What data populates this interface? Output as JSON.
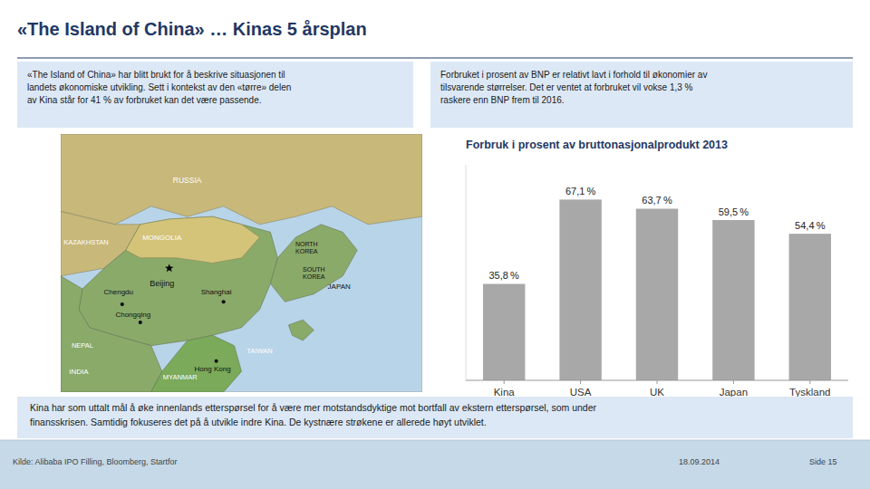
{
  "chart_data": {
    "type": "bar",
    "title": "Forbruk i prosent av bruttonasjonalprodukt 2013",
    "categories": [
      "Kina",
      "USA",
      "UK",
      "Japan",
      "Tyskland"
    ],
    "values": [
      35.8,
      67.1,
      63.7,
      59.5,
      54.4
    ],
    "value_labels": [
      "35,8 %",
      "67,1 %",
      "63,7 %",
      "59,5 %",
      "54,4 %"
    ],
    "data_labels": true,
    "color": "#a8a8a8",
    "ylim": [
      0,
      80
    ],
    "tick_labels": "x",
    "grid": false
  },
  "page": {
    "title": "«The Island of China» … Kinas 5 årsplan",
    "left_text": "«The Island of China» har blitt brukt for å beskrive situasjonen til\nlandets økonomiske utvikling. Sett i kontekst av den «tørre» delen\nav Kina står for 41 % av forbruket kan det være passende.",
    "right_text": "Forbruket i prosent av BNP er relativt lavt i forhold til økonomier av\ntilsvarende størrelser. Det er ventet at forbruket vil vokse 1,3 %\nraskere enn BNP frem til 2016.",
    "footer_text": "Kina har som uttalt mål å øke innenlands etterspørsel for å være mer motstandsdyktige mot bortfall av ekstern etterspørsel, som under\nfinansskrisen. Samtidig fokuseres det på å utvikle indre Kina. De kystnære strøkene er allerede høyt utviklet.",
    "source_text": "Kilde: Alibaba IPO Filling, Bloomberg, Startfor",
    "date_text": "18.09.2014",
    "page_text": "Side 15",
    "map_labels": [
      "RUSSIA",
      "KAZAKHSTAN",
      "MONGOLIA",
      "Beijing",
      "Chengdu",
      "Chongqing",
      "Shanghai",
      "NEPAL",
      "INDIA",
      "MYANMAR",
      "TAIWAN",
      "Hong Kong",
      "NORTH\nKOREA",
      "SOUTH\nKOREA",
      "JAPAN"
    ]
  }
}
